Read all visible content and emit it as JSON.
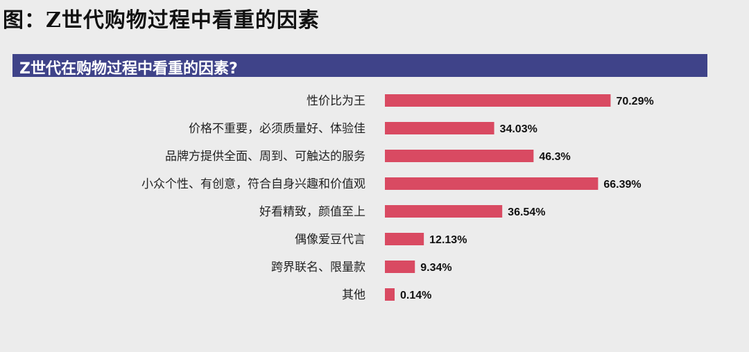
{
  "caption": "图：Z世代购物过程中看重的因素",
  "chart_data": {
    "type": "bar",
    "orientation": "horizontal",
    "title": "Z世代在购物过程中看重的因素?",
    "categories": [
      "性价比为王",
      "价格不重要，必须质量好、体验佳",
      "品牌方提供全面、周到、可触达的服务",
      "小众个性、有创意，符合自身兴趣和价值观",
      "好看精致，颜值至上",
      "偶像爱豆代言",
      "跨界联名、限量款",
      "其他"
    ],
    "values": [
      70.29,
      34.03,
      46.3,
      66.39,
      36.54,
      12.13,
      9.34,
      0.14
    ],
    "value_labels": [
      "70.29%",
      "34.03%",
      "46.3%",
      "66.39%",
      "36.54%",
      "12.13%",
      "9.34%",
      "0.14%"
    ],
    "bar_color": "#d94a62",
    "header_color": "#3f4389",
    "grid": false,
    "legend": "none"
  }
}
